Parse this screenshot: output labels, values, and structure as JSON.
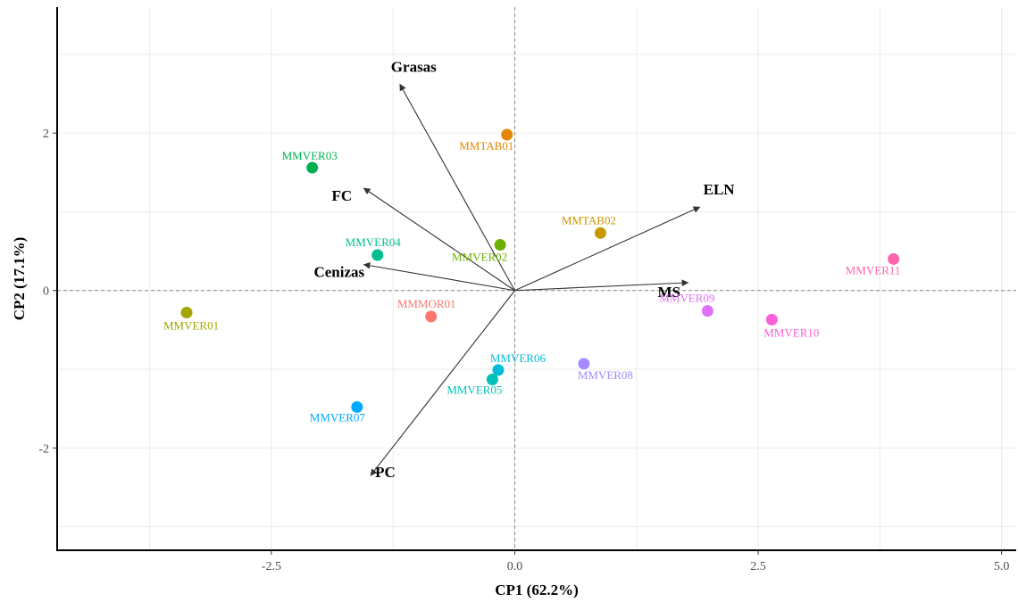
{
  "chart_data": {
    "type": "scatter",
    "subtype": "pca-biplot",
    "xlabel": "CP1 (62.2%)",
    "ylabel": "CP2 (17.1%)",
    "xlim": [
      -4.7,
      5.15
    ],
    "ylim": [
      -3.3,
      3.6
    ],
    "xticks": [
      -2.5,
      0.0,
      2.5,
      5.0
    ],
    "xtick_labels": [
      "-2.5",
      "0.0",
      "2.5",
      "5.0"
    ],
    "yticks": [
      -2,
      0,
      2
    ],
    "ytick_labels": [
      "-2",
      "0",
      "2"
    ],
    "grid": true,
    "reference_lines": {
      "x": 0,
      "y": 0
    },
    "points": [
      {
        "label": "MMVER01",
        "x": -3.37,
        "y": -0.28,
        "color": "#a3a500"
      },
      {
        "label": "MMVER03",
        "x": -2.08,
        "y": 1.56,
        "color": "#00b050"
      },
      {
        "label": "MMVER04",
        "x": -1.41,
        "y": 0.45,
        "color": "#00be90"
      },
      {
        "label": "MMMOR01",
        "x": -0.86,
        "y": -0.33,
        "color": "#f8766d"
      },
      {
        "label": "MMTAB01",
        "x": -0.08,
        "y": 1.98,
        "color": "#e58700"
      },
      {
        "label": "MMVER02",
        "x": -0.15,
        "y": 0.58,
        "color": "#6bb100"
      },
      {
        "label": "MMTAB02",
        "x": 0.88,
        "y": 0.73,
        "color": "#c99800"
      },
      {
        "label": "MMVER06",
        "x": -0.17,
        "y": -1.01,
        "color": "#00bcd8"
      },
      {
        "label": "MMVER05",
        "x": -0.23,
        "y": -1.13,
        "color": "#00c0b8"
      },
      {
        "label": "MMVER07",
        "x": -1.62,
        "y": -1.48,
        "color": "#00a9ff"
      },
      {
        "label": "MMVER08",
        "x": 0.71,
        "y": -0.93,
        "color": "#a58aff"
      },
      {
        "label": "MMVER09",
        "x": 1.98,
        "y": -0.26,
        "color": "#df70f8"
      },
      {
        "label": "MMVER10",
        "x": 2.64,
        "y": -0.37,
        "color": "#fb61d7"
      },
      {
        "label": "MMVER11",
        "x": 3.89,
        "y": 0.4,
        "color": "#ff65ac"
      }
    ],
    "vectors": [
      {
        "label": "Grasas",
        "x": -1.18,
        "y": 2.62
      },
      {
        "label": "FC",
        "x": -1.55,
        "y": 1.3
      },
      {
        "label": "ELN",
        "x": 1.9,
        "y": 1.06
      },
      {
        "label": "Cenizas",
        "x": -1.55,
        "y": 0.33
      },
      {
        "label": "MS",
        "x": 1.78,
        "y": 0.1
      },
      {
        "label": "PC",
        "x": -1.48,
        "y": -2.35
      }
    ]
  }
}
